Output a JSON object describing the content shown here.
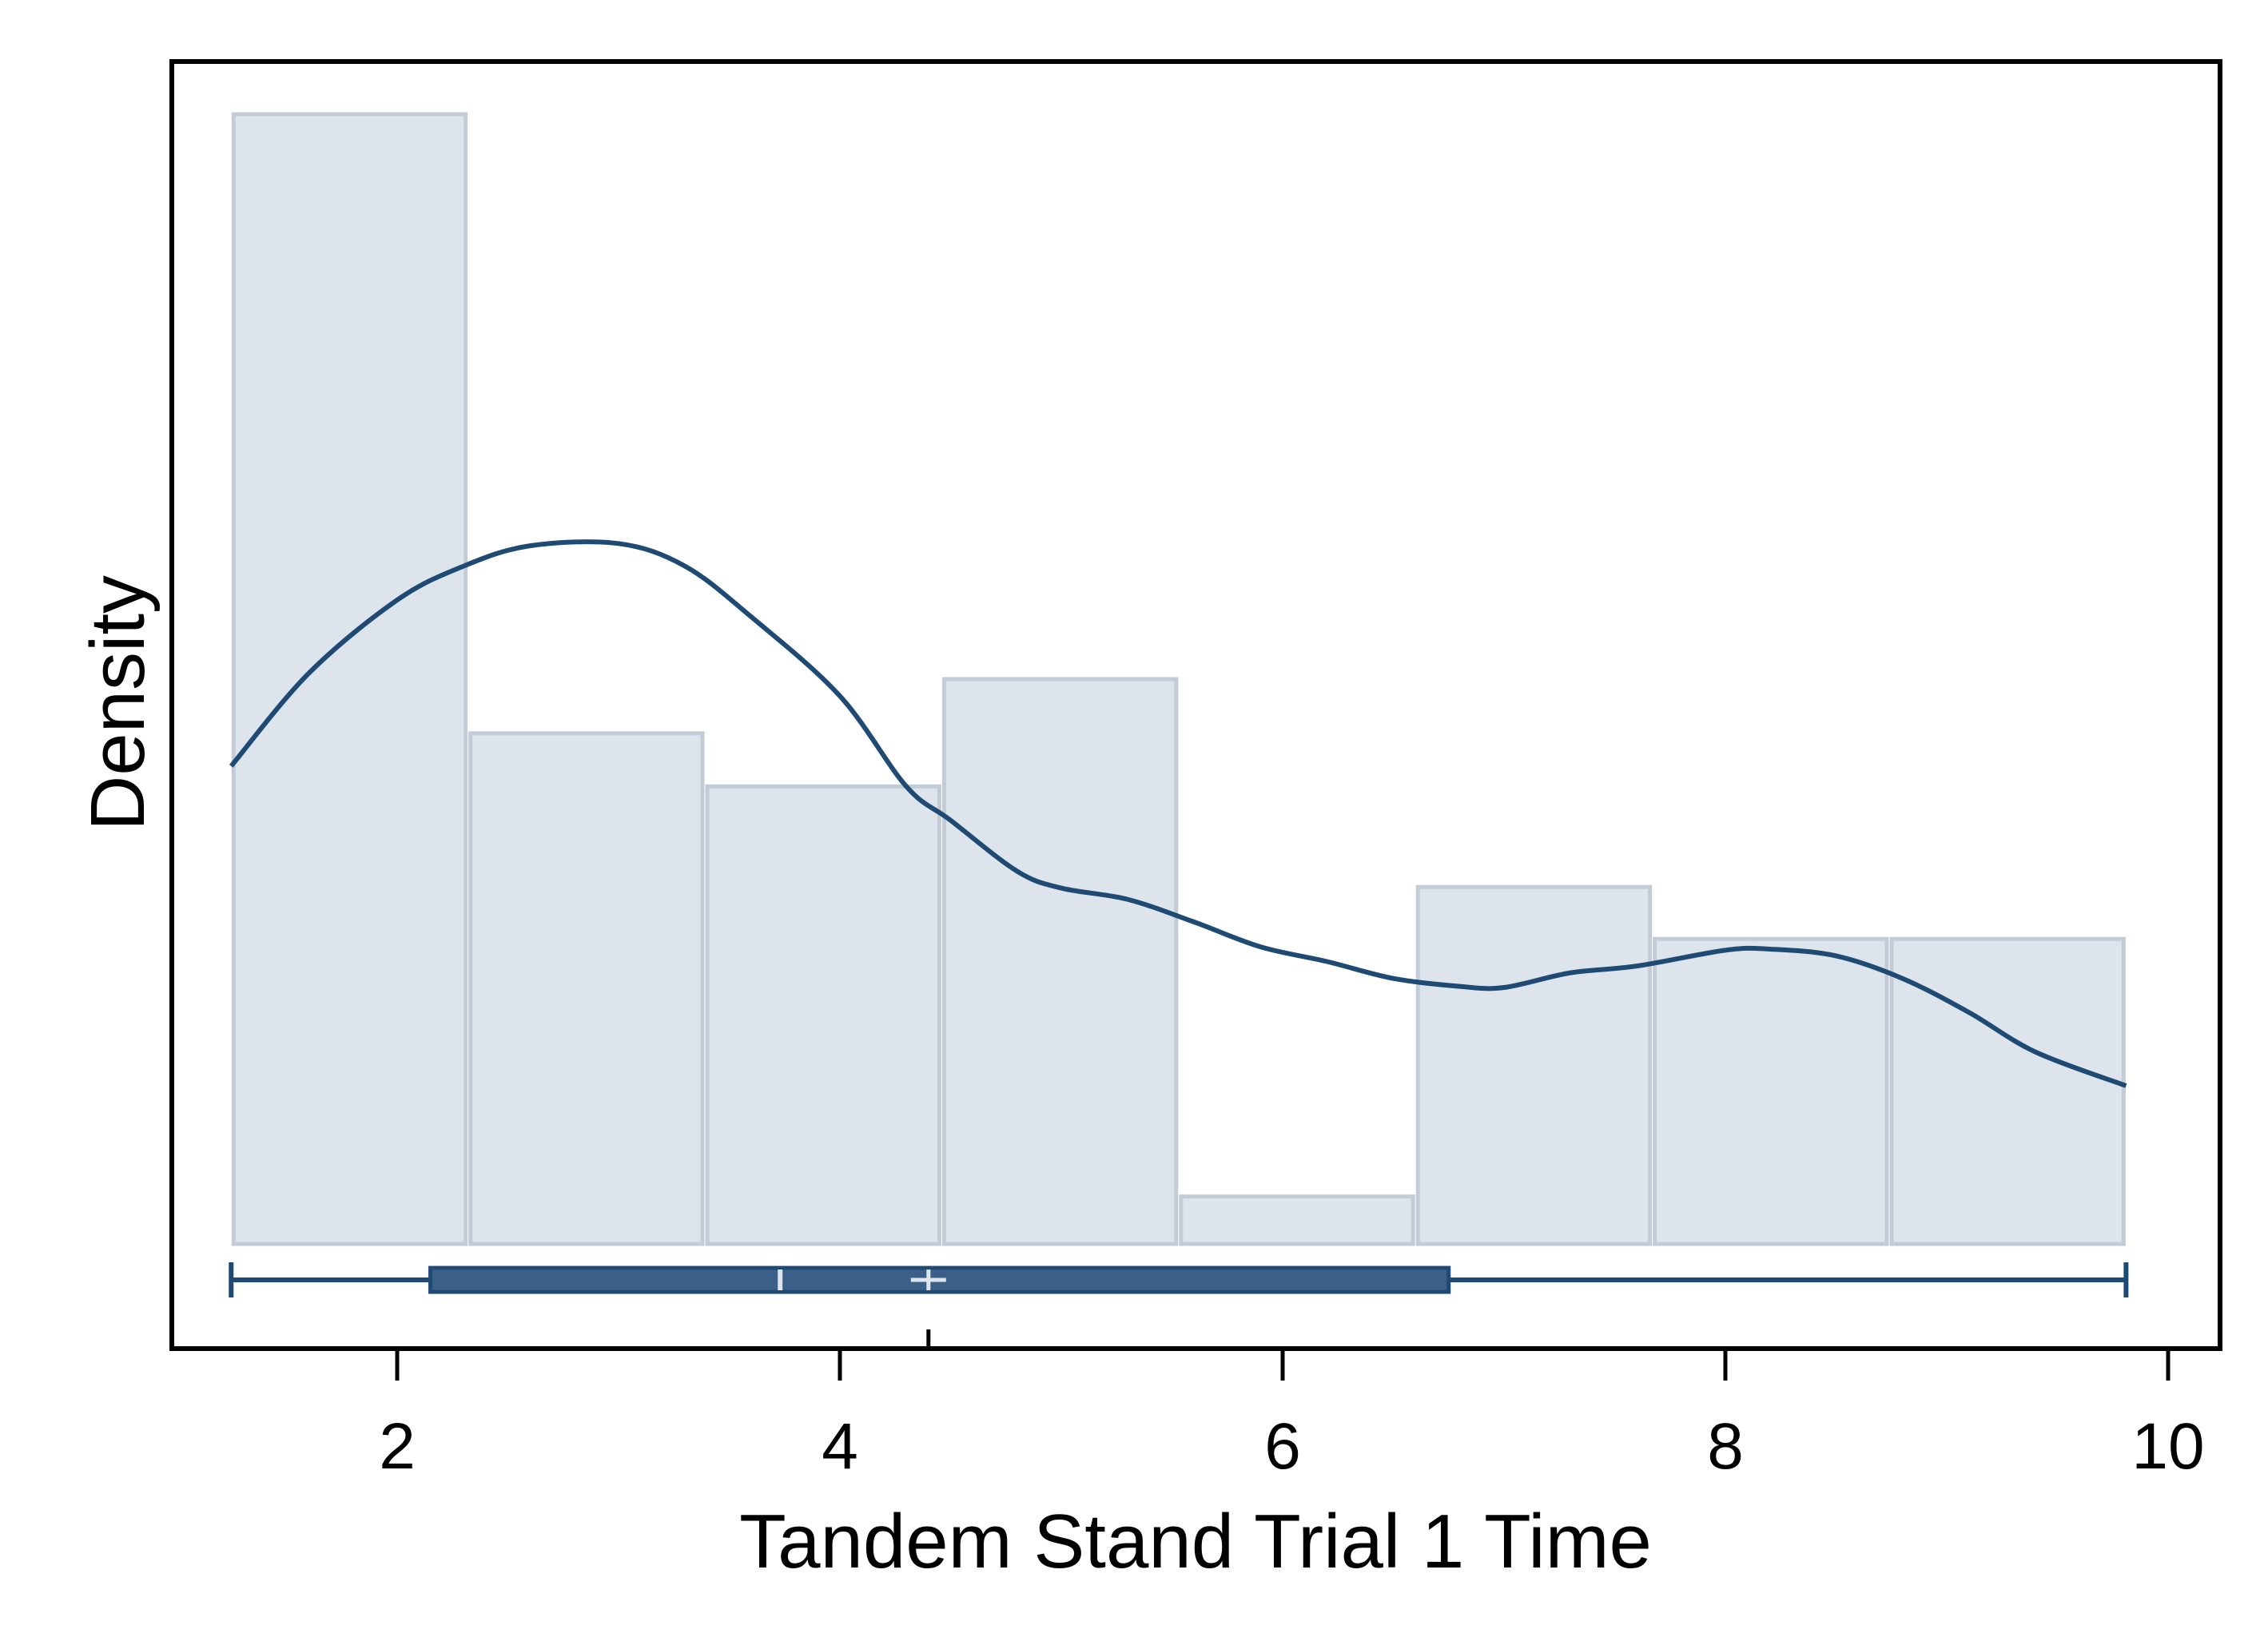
{
  "chart_data": {
    "type": "histogram",
    "title": "",
    "xlabel": "Tandem Stand Trial 1 Time",
    "ylabel": "Density",
    "xlim": [
      1.0,
      10.2
    ],
    "ylim": [
      0,
      1
    ],
    "x_ticks": [
      2,
      4,
      6,
      8,
      10
    ],
    "x_tick_labels": [
      "2",
      "4",
      "6",
      "8",
      "10"
    ],
    "grid": false,
    "legend": "none",
    "colors": {
      "bar_fill": "#dde4ec",
      "bar_stroke": "#c3ccd6",
      "line": "#1f4a73",
      "box_fill": "#3b5f86",
      "box_stroke": "#1f4a73",
      "frame": "#000000"
    },
    "histogram": {
      "bins": [
        {
          "x0": 1.25,
          "x1": 2.32,
          "density": 1.0
        },
        {
          "x0": 2.32,
          "x1": 3.39,
          "density": 0.452
        },
        {
          "x0": 3.39,
          "x1": 4.46,
          "density": 0.405
        },
        {
          "x0": 4.46,
          "x1": 5.53,
          "density": 0.5
        },
        {
          "x0": 5.53,
          "x1": 6.6,
          "density": 0.042
        },
        {
          "x0": 6.6,
          "x1": 7.67,
          "density": 0.316
        },
        {
          "x0": 7.67,
          "x1": 8.74,
          "density": 0.27
        },
        {
          "x0": 8.74,
          "x1": 9.81,
          "density": 0.27
        }
      ]
    },
    "kde": {
      "x": [
        1.25,
        1.6,
        2.0,
        2.3,
        2.6,
        3.0,
        3.3,
        3.6,
        4.0,
        4.3,
        4.5,
        4.8,
        5.0,
        5.3,
        5.6,
        5.9,
        6.2,
        6.5,
        6.8,
        7.0,
        7.3,
        7.6,
        8.0,
        8.2,
        8.5,
        8.8,
        9.1,
        9.4,
        9.81
      ],
      "y": [
        0.423,
        0.505,
        0.57,
        0.6,
        0.618,
        0.62,
        0.6,
        0.555,
        0.485,
        0.405,
        0.375,
        0.33,
        0.315,
        0.305,
        0.285,
        0.263,
        0.25,
        0.235,
        0.228,
        0.227,
        0.24,
        0.246,
        0.26,
        0.261,
        0.255,
        0.235,
        0.205,
        0.17,
        0.14
      ]
    },
    "boxplot": {
      "min": 1.25,
      "q1": 2.15,
      "median": 3.73,
      "mean": 4.4,
      "q3": 6.75,
      "max": 9.81
    }
  }
}
